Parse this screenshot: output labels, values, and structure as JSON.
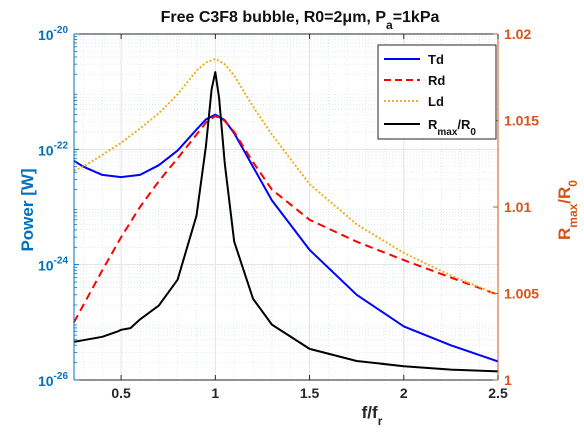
{
  "chart_data": {
    "type": "line",
    "title": "Free C3F8 bubble, R0=2μm, P_a=1kPa",
    "xlabel": "f/f_r",
    "ylabel_left": "Power [W]",
    "ylabel_right": "R_max/R_0",
    "xlim": [
      0.25,
      2.5
    ],
    "ylim_left": [
      1e-26,
      1e-20
    ],
    "ylim_right": [
      1.0,
      1.02
    ],
    "yscale_left": "log",
    "yscale_right": "linear",
    "xticks": [
      0.5,
      1,
      1.5,
      2,
      2.5
    ],
    "yticks_left": [
      -26,
      -24,
      -22,
      -20
    ],
    "yticks_right": [
      1,
      1.005,
      1.01,
      1.015,
      1.02
    ],
    "grid": true,
    "legend_position": "top-right",
    "series": [
      {
        "name": "Td",
        "axis": "left",
        "color": "#0000FF",
        "style": "solid",
        "x": [
          0.25,
          0.3,
          0.4,
          0.5,
          0.6,
          0.7,
          0.8,
          0.9,
          0.95,
          1.0,
          1.05,
          1.1,
          1.2,
          1.3,
          1.5,
          1.75,
          2.0,
          2.25,
          2.5
        ],
        "y": [
          6.3e-23,
          5e-23,
          3.6e-23,
          3.3e-23,
          3.6e-23,
          5.3e-23,
          9.5e-23,
          2.2e-22,
          3.3e-22,
          4e-22,
          3.2e-22,
          1.9e-22,
          5e-23,
          1.3e-23,
          1.8e-24,
          3e-25,
          8.5e-26,
          4e-26,
          2.1e-26
        ]
      },
      {
        "name": "Rd",
        "axis": "left",
        "color": "#FF0000",
        "style": "dashed",
        "x": [
          0.25,
          0.3,
          0.4,
          0.5,
          0.6,
          0.7,
          0.8,
          0.9,
          0.95,
          1.0,
          1.05,
          1.1,
          1.2,
          1.3,
          1.5,
          1.75,
          2.0,
          2.25,
          2.5
        ],
        "y": [
          1e-25,
          2e-25,
          8e-25,
          3e-24,
          1e-23,
          2.8e-23,
          7e-23,
          1.8e-22,
          2.9e-22,
          3.8e-22,
          3.1e-22,
          2e-22,
          6e-23,
          2e-23,
          6e-24,
          2.5e-24,
          1.2e-24,
          6e-25,
          3e-25
        ]
      },
      {
        "name": "Ld",
        "axis": "left",
        "color": "#EDB120",
        "style": "dotted",
        "x": [
          0.25,
          0.3,
          0.4,
          0.5,
          0.6,
          0.7,
          0.8,
          0.9,
          0.95,
          1.0,
          1.05,
          1.1,
          1.2,
          1.3,
          1.5,
          1.75,
          2.0,
          2.25,
          2.5
        ],
        "y": [
          4.3e-23,
          5e-23,
          8e-23,
          1.3e-22,
          2.3e-22,
          4.2e-22,
          9e-22,
          2.3e-21,
          3.2e-21,
          3.7e-21,
          3e-21,
          1.9e-21,
          5.5e-22,
          1.8e-22,
          2.5e-23,
          5e-24,
          1.6e-24,
          6.5e-25,
          3e-25
        ]
      },
      {
        "name": "R_max/R_0",
        "axis": "right",
        "color": "#000000",
        "style": "solid",
        "x": [
          0.25,
          0.3,
          0.4,
          0.48,
          0.5,
          0.55,
          0.6,
          0.7,
          0.8,
          0.9,
          0.95,
          0.98,
          1.0,
          1.02,
          1.05,
          1.1,
          1.2,
          1.3,
          1.5,
          1.75,
          2.0,
          2.25,
          2.5
        ],
        "y": [
          1.0022,
          1.0023,
          1.0025,
          1.0028,
          1.0029,
          1.003,
          1.0035,
          1.0043,
          1.0058,
          1.0095,
          1.0135,
          1.0168,
          1.0178,
          1.0163,
          1.0125,
          1.008,
          1.0047,
          1.0032,
          1.0018,
          1.0011,
          1.0008,
          1.0006,
          1.0005
        ]
      }
    ]
  }
}
